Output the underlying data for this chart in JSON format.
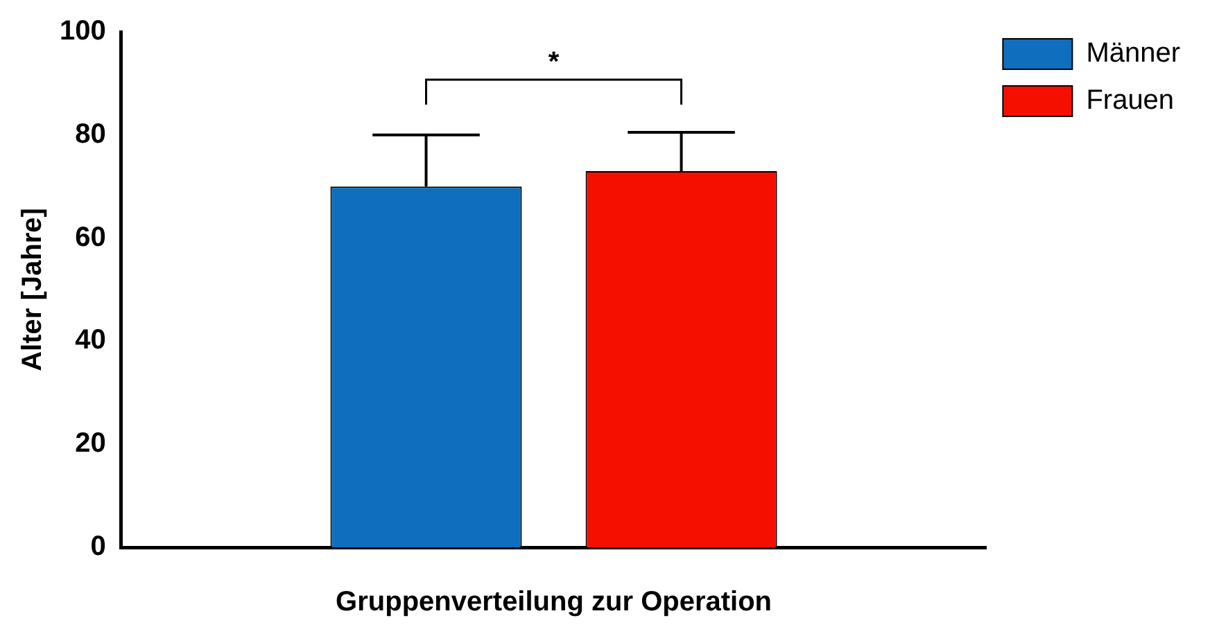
{
  "chart_data": {
    "type": "bar",
    "xlabel": "Gruppenverteilung zur Operation",
    "ylabel": "Alter [Jahre]",
    "categories": [
      null
    ],
    "series": [
      {
        "name": "Männer",
        "color": "#106ebe",
        "values": [
          70
        ],
        "errors": [
          [
            70,
            80
          ]
        ]
      },
      {
        "name": "Frauen",
        "color": "#f50f00",
        "values": [
          73
        ],
        "errors": [
          [
            73,
            80.5
          ]
        ]
      }
    ],
    "ylim": [
      0,
      100
    ],
    "yticks": [
      0,
      20,
      40,
      60,
      80,
      100
    ],
    "grid": false,
    "legend": "top right",
    "annotations": [
      "*"
    ]
  }
}
